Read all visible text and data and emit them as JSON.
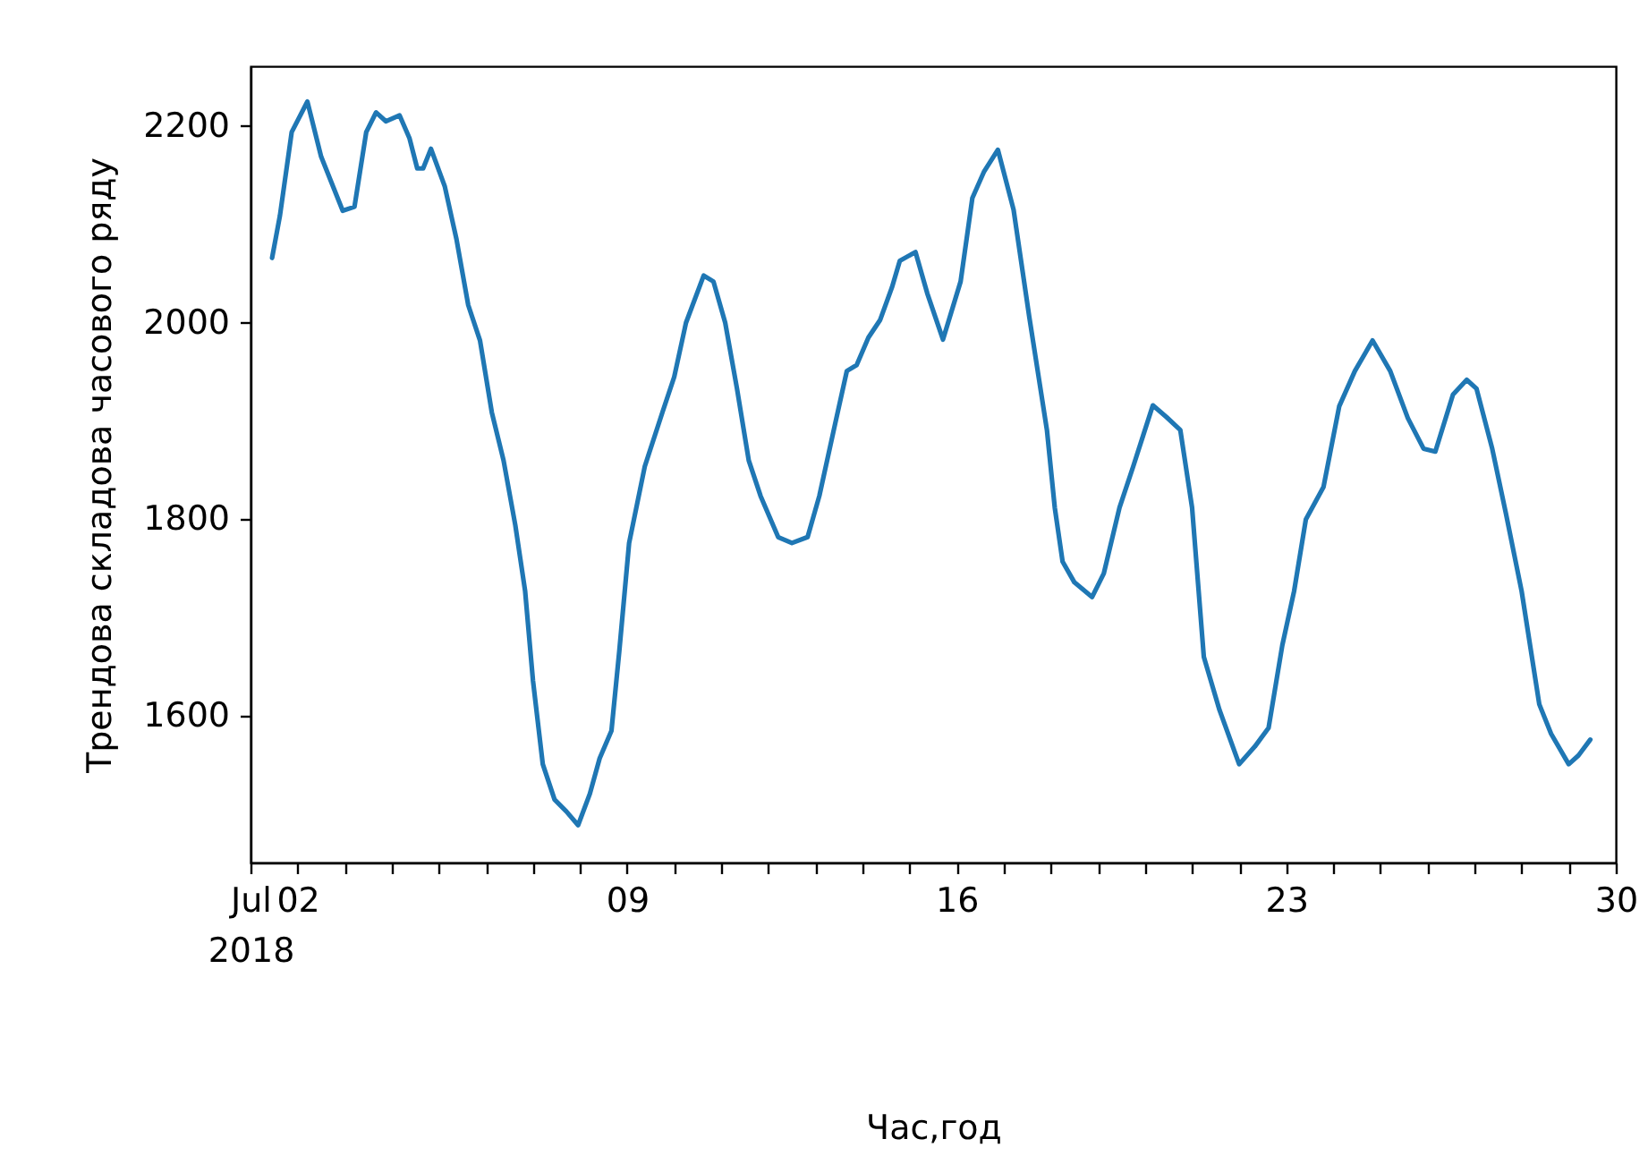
{
  "chart_data": {
    "type": "line",
    "xlabel": "Час,год",
    "ylabel": "Трендова складова часового ряду",
    "x": [
      "2018-07-01T11:00",
      "2018-07-01T15:00",
      "2018-07-01T21:00",
      "2018-07-02T05:00",
      "2018-07-02T12:00",
      "2018-07-02T23:00",
      "2018-07-03T05:00",
      "2018-07-03T11:00",
      "2018-07-03T16:00",
      "2018-07-03T21:00",
      "2018-07-04T04:00",
      "2018-07-04T09:00",
      "2018-07-04T13:00",
      "2018-07-04T16:00",
      "2018-07-04T20:00",
      "2018-07-05T03:00",
      "2018-07-05T09:00",
      "2018-07-05T15:00",
      "2018-07-05T21:00",
      "2018-07-06T03:00",
      "2018-07-06T09:00",
      "2018-07-06T15:00",
      "2018-07-06T20:00",
      "2018-07-07T00:00",
      "2018-07-07T05:00",
      "2018-07-07T11:00",
      "2018-07-07T17:00",
      "2018-07-07T23:00",
      "2018-07-08T05:00",
      "2018-07-08T10:00",
      "2018-07-08T16:00",
      "2018-07-08T20:00",
      "2018-07-09T01:00",
      "2018-07-09T09:00",
      "2018-07-09T18:00",
      "2018-07-10T00:00",
      "2018-07-10T06:00",
      "2018-07-10T15:00",
      "2018-07-10T20:00",
      "2018-07-11T02:00",
      "2018-07-11T08:00",
      "2018-07-11T14:00",
      "2018-07-11T20:00",
      "2018-07-12T05:00",
      "2018-07-12T12:00",
      "2018-07-12T20:00",
      "2018-07-13T02:00",
      "2018-07-13T10:00",
      "2018-07-13T16:00",
      "2018-07-13T21:00",
      "2018-07-14T03:00",
      "2018-07-14T09:00",
      "2018-07-14T15:00",
      "2018-07-14T19:00",
      "2018-07-15T03:00",
      "2018-07-15T09:00",
      "2018-07-15T17:00",
      "2018-07-16T02:00",
      "2018-07-16T08:00",
      "2018-07-16T14:00",
      "2018-07-16T21:00",
      "2018-07-17T05:00",
      "2018-07-17T13:00",
      "2018-07-17T22:00",
      "2018-07-18T02:00",
      "2018-07-18T06:00",
      "2018-07-18T12:00",
      "2018-07-18T21:00",
      "2018-07-19T03:00",
      "2018-07-19T11:00",
      "2018-07-19T18:00",
      "2018-07-19T23:00",
      "2018-07-20T04:00",
      "2018-07-20T11:00",
      "2018-07-20T18:00",
      "2018-07-21T00:00",
      "2018-07-21T06:00",
      "2018-07-21T14:00",
      "2018-07-22T00:00",
      "2018-07-22T08:00",
      "2018-07-22T15:00",
      "2018-07-22T22:00",
      "2018-07-23T04:00",
      "2018-07-23T10:00",
      "2018-07-23T19:00",
      "2018-07-24T03:00",
      "2018-07-24T11:00",
      "2018-07-24T20:00",
      "2018-07-25T05:00",
      "2018-07-25T14:00",
      "2018-07-25T22:00",
      "2018-07-26T04:00",
      "2018-07-26T13:00",
      "2018-07-26T20:00",
      "2018-07-27T01:00",
      "2018-07-27T09:00",
      "2018-07-27T16:00",
      "2018-07-28T00:00",
      "2018-07-28T09:00",
      "2018-07-28T15:00",
      "2018-07-29T00:00",
      "2018-07-29T05:00",
      "2018-07-29T11:00"
    ],
    "series": [
      {
        "color": "#1f77b4",
        "values": [
          2065,
          2108,
          2193,
          2224,
          2168,
          2113,
          2117,
          2193,
          2213,
          2204,
          2210,
          2187,
          2156,
          2156,
          2176,
          2138,
          2084,
          2017,
          1981,
          1908,
          1859,
          1793,
          1726,
          1635,
          1550,
          1514,
          1502,
          1488,
          1520,
          1556,
          1584,
          1665,
          1775,
          1853,
          1908,
          1944,
          1999,
          2047,
          2041,
          1999,
          1932,
          1859,
          1823,
          1781,
          1775,
          1781,
          1823,
          1896,
          1950,
          1956,
          1984,
          2002,
          2035,
          2062,
          2071,
          2029,
          1982,
          2041,
          2126,
          2153,
          2175,
          2114,
          2005,
          1890,
          1811,
          1756,
          1735,
          1720,
          1744,
          1811,
          1853,
          1884,
          1915,
          1903,
          1890,
          1811,
          1659,
          1605,
          1550,
          1568,
          1587,
          1671,
          1726,
          1799,
          1832,
          1914,
          1950,
          1981,
          1950,
          1902,
          1871,
          1868,
          1926,
          1941,
          1932,
          1871,
          1805,
          1726,
          1611,
          1581,
          1550,
          1559,
          1575
        ]
      }
    ],
    "xlim": [
      "2018-07-01",
      "2018-07-30"
    ],
    "xticks": [
      {
        "value": "2018-07-01",
        "label": "Jul\n2018"
      },
      {
        "value": "2018-07-02",
        "label": "02"
      },
      {
        "value": "2018-07-03",
        "label": null
      },
      {
        "value": "2018-07-04",
        "label": null
      },
      {
        "value": "2018-07-05",
        "label": null
      },
      {
        "value": "2018-07-06",
        "label": null
      },
      {
        "value": "2018-07-07",
        "label": null
      },
      {
        "value": "2018-07-08",
        "label": null
      },
      {
        "value": "2018-07-09",
        "label": "09"
      },
      {
        "value": "2018-07-10",
        "label": null
      },
      {
        "value": "2018-07-11",
        "label": null
      },
      {
        "value": "2018-07-12",
        "label": null
      },
      {
        "value": "2018-07-13",
        "label": null
      },
      {
        "value": "2018-07-14",
        "label": null
      },
      {
        "value": "2018-07-15",
        "label": null
      },
      {
        "value": "2018-07-16",
        "label": "16"
      },
      {
        "value": "2018-07-17",
        "label": null
      },
      {
        "value": "2018-07-18",
        "label": null
      },
      {
        "value": "2018-07-19",
        "label": null
      },
      {
        "value": "2018-07-20",
        "label": null
      },
      {
        "value": "2018-07-21",
        "label": null
      },
      {
        "value": "2018-07-22",
        "label": null
      },
      {
        "value": "2018-07-23",
        "label": "23"
      },
      {
        "value": "2018-07-24",
        "label": null
      },
      {
        "value": "2018-07-25",
        "label": null
      },
      {
        "value": "2018-07-26",
        "label": null
      },
      {
        "value": "2018-07-27",
        "label": null
      },
      {
        "value": "2018-07-28",
        "label": null
      },
      {
        "value": "2018-07-29",
        "label": null
      },
      {
        "value": "2018-07-30",
        "label": "30"
      }
    ],
    "ylim": [
      1450,
      2260
    ],
    "yticks": [
      1600,
      1800,
      2000,
      2200
    ]
  }
}
